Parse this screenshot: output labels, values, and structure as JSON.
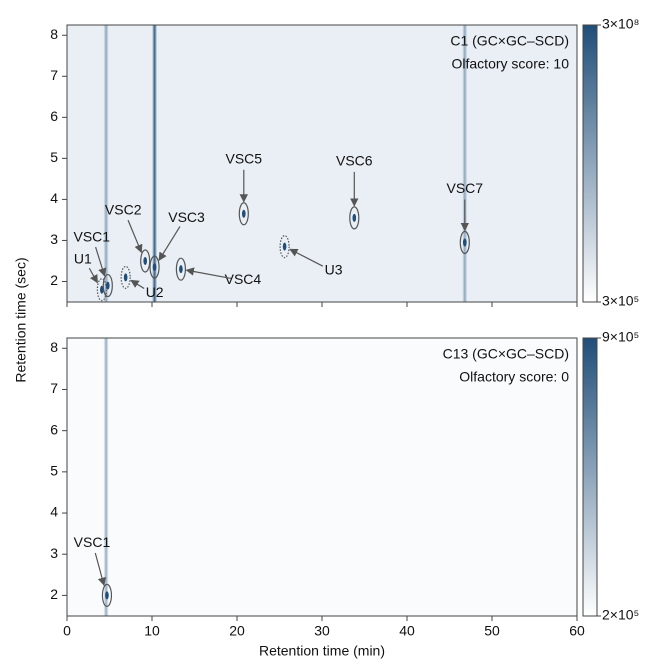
{
  "chart_data": [
    {
      "type": "heatmap",
      "title": "C1 (GC×GC–SCD)",
      "subtitle": "Olfactory score: 10",
      "ylabel": "Retention time (sec)",
      "xlim": [
        0,
        60
      ],
      "ylim": [
        1.5,
        8.25
      ],
      "xticks": [
        0,
        10,
        20,
        30,
        40,
        50,
        60
      ],
      "yticks": [
        2,
        3,
        4,
        5,
        6,
        7,
        8
      ],
      "clim": [
        300000,
        300000000
      ],
      "log_color_scale": true,
      "cticks": [
        {
          "value": 300000000,
          "label": "3×10⁸"
        },
        {
          "value": 300000,
          "label": "3×10⁵"
        }
      ],
      "colors": [
        "#ffffff",
        "#1f4e79"
      ],
      "background": "#e9eff5",
      "streaks": [
        4.6,
        10.3,
        46.8
      ],
      "annotations": [
        {
          "label": "U1",
          "x": 4.1,
          "y": 1.8,
          "style": "dotted"
        },
        {
          "label": "VSC1",
          "x": 4.8,
          "y": 1.9,
          "style": "solid"
        },
        {
          "label": "U2",
          "x": 6.9,
          "y": 2.1,
          "style": "dotted"
        },
        {
          "label": "VSC2",
          "x": 9.2,
          "y": 2.5,
          "style": "solid"
        },
        {
          "label": "VSC3",
          "x": 10.3,
          "y": 2.35,
          "style": "solid"
        },
        {
          "label": "VSC4",
          "x": 13.4,
          "y": 2.3,
          "style": "solid"
        },
        {
          "label": "VSC5",
          "x": 20.8,
          "y": 3.65,
          "style": "solid"
        },
        {
          "label": "U3",
          "x": 25.6,
          "y": 2.85,
          "style": "dotted"
        },
        {
          "label": "VSC6",
          "x": 33.8,
          "y": 3.55,
          "style": "solid"
        },
        {
          "label": "VSC7",
          "x": 46.8,
          "y": 2.95,
          "style": "solid"
        }
      ]
    },
    {
      "type": "heatmap",
      "title": "C13 (GC×GC–SCD)",
      "subtitle": "Olfactory score: 0",
      "xlabel": "Retention time (min)",
      "xlim": [
        0,
        60
      ],
      "ylim": [
        1.5,
        8.25
      ],
      "xticks": [
        0,
        10,
        20,
        30,
        40,
        50,
        60
      ],
      "yticks": [
        2,
        3,
        4,
        5,
        6,
        7,
        8
      ],
      "clim": [
        200000,
        900000
      ],
      "log_color_scale": true,
      "cticks": [
        {
          "value": 900000,
          "label": "9×10⁵"
        },
        {
          "value": 200000,
          "label": "2×10⁵"
        }
      ],
      "colors": [
        "#ffffff",
        "#1f4e79"
      ],
      "background": "#f9fbfd",
      "streaks": [
        4.6
      ],
      "annotations": [
        {
          "label": "VSC1",
          "x": 4.7,
          "y": 2.0,
          "style": "solid"
        }
      ]
    }
  ]
}
